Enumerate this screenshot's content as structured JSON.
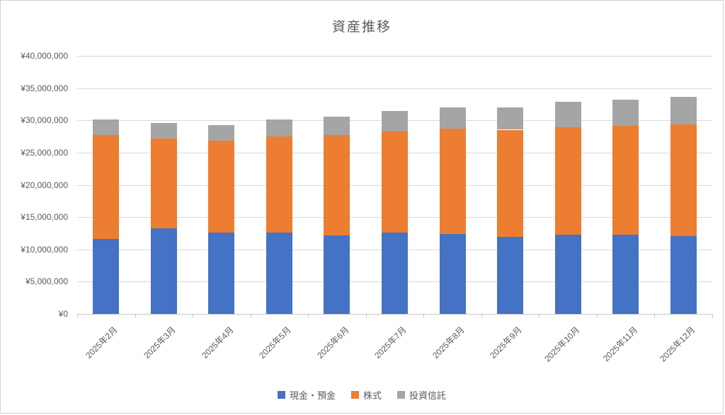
{
  "title": "資産推移",
  "chart_data": {
    "type": "bar",
    "subtype": "stacked-column",
    "title": "資産推移",
    "categories": [
      "2025年2月",
      "2025年3月",
      "2025年4月",
      "2025年5月",
      "2025年6月",
      "2025年7月",
      "2025年8月",
      "2025年9月",
      "2025年10月",
      "2025年11月",
      "2025年12月"
    ],
    "series": [
      {
        "name": "現金・預金",
        "color": "#4472C4",
        "values": [
          11650000,
          13300000,
          12650000,
          12550000,
          12200000,
          12600000,
          12350000,
          11900000,
          12300000,
          12250000,
          12100000
        ]
      },
      {
        "name": "株式",
        "color": "#ED7D31",
        "values": [
          16050000,
          13850000,
          14200000,
          14950000,
          15500000,
          15650000,
          16400000,
          16650000,
          16600000,
          16900000,
          17250000
        ]
      },
      {
        "name": "投資信託",
        "color": "#A5A5A5",
        "values": [
          2450000,
          2400000,
          2400000,
          2600000,
          2900000,
          3250000,
          3300000,
          3450000,
          3950000,
          4050000,
          4300000
        ]
      }
    ],
    "totals": [
      30150000,
      29550000,
      29250000,
      30100000,
      30600000,
      31500000,
      32050000,
      32000000,
      32850000,
      33200000,
      33650000
    ],
    "xlabel": "",
    "ylabel": "",
    "ylim": [
      0,
      40000000
    ],
    "y_tick_step": 5000000,
    "y_tick_labels": [
      "¥0",
      "¥5,000,000",
      "¥10,000,000",
      "¥15,000,000",
      "¥20,000,000",
      "¥25,000,000",
      "¥30,000,000",
      "¥35,000,000",
      "¥40,000,000"
    ],
    "grid": true,
    "legend_position": "bottom"
  },
  "colors": {
    "title_text": "#595959",
    "axis_text": "#595959",
    "gridline": "#D9D9D9",
    "axis_line": "#C6C6C6",
    "frame_border": "#D2D2D2",
    "background": "#FFFFFF"
  }
}
